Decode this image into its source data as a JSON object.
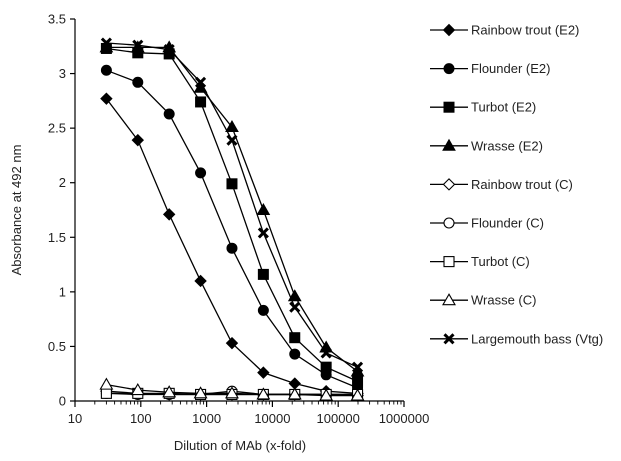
{
  "chart_data": {
    "type": "line",
    "title": "",
    "xlabel": "Dilution of MAb (x-fold)",
    "ylabel": "Absorbance at  492 nm",
    "xscale": "log",
    "xlim": [
      10,
      1000000
    ],
    "ylim": [
      0,
      3.5
    ],
    "grid": false,
    "legend_position": "right",
    "x_ticks": [
      10,
      100,
      1000,
      10000,
      100000,
      1000000
    ],
    "x_tick_labels": [
      "10",
      "100",
      "1000",
      "10000",
      "100000",
      "1000000"
    ],
    "y_ticks": [
      0,
      0.5,
      1,
      1.5,
      2,
      2.5,
      3,
      3.5
    ],
    "y_tick_labels": [
      "0",
      "0.5",
      "1",
      "1.5",
      "2",
      "2.5",
      "3",
      "3.5"
    ],
    "x": [
      30,
      90,
      270,
      810,
      2430,
      7290,
      21870,
      65610,
      196830
    ],
    "series": [
      {
        "name": "Rainbow trout (E2)",
        "marker": "diamond-filled",
        "values": [
          2.77,
          2.39,
          1.71,
          1.1,
          0.53,
          0.26,
          0.16,
          0.09,
          0.07
        ]
      },
      {
        "name": "Flounder (E2)",
        "marker": "circle-filled",
        "values": [
          3.03,
          2.92,
          2.63,
          2.09,
          1.4,
          0.83,
          0.43,
          0.24,
          0.12
        ]
      },
      {
        "name": "Turbot (E2)",
        "marker": "square-filled",
        "values": [
          3.23,
          3.19,
          3.18,
          2.74,
          1.99,
          1.16,
          0.58,
          0.31,
          0.18
        ]
      },
      {
        "name": "Wrasse (E2)",
        "marker": "triangle-filled",
        "values": [
          3.24,
          3.24,
          3.24,
          2.87,
          2.51,
          1.75,
          0.96,
          0.49,
          0.27
        ]
      },
      {
        "name": "Rainbow trout (C)",
        "marker": "diamond-open",
        "values": [
          0.09,
          0.07,
          0.06,
          0.06,
          0.06,
          0.06,
          0.06,
          0.06,
          0.05
        ]
      },
      {
        "name": "Flounder (C)",
        "marker": "circle-open",
        "values": [
          0.07,
          0.06,
          0.06,
          0.06,
          0.09,
          0.06,
          0.06,
          0.06,
          0.06
        ]
      },
      {
        "name": "Turbot (C)",
        "marker": "square-open",
        "values": [
          0.07,
          0.07,
          0.07,
          0.06,
          0.06,
          0.06,
          0.06,
          0.06,
          0.06
        ]
      },
      {
        "name": "Wrasse (C)",
        "marker": "triangle-open",
        "values": [
          0.15,
          0.1,
          0.08,
          0.07,
          0.07,
          0.06,
          0.06,
          0.05,
          0.05
        ]
      },
      {
        "name": "Largemouth bass (Vtg)",
        "marker": "x",
        "values": [
          3.28,
          3.26,
          3.22,
          2.92,
          2.39,
          1.54,
          0.86,
          0.44,
          0.31
        ]
      }
    ]
  }
}
